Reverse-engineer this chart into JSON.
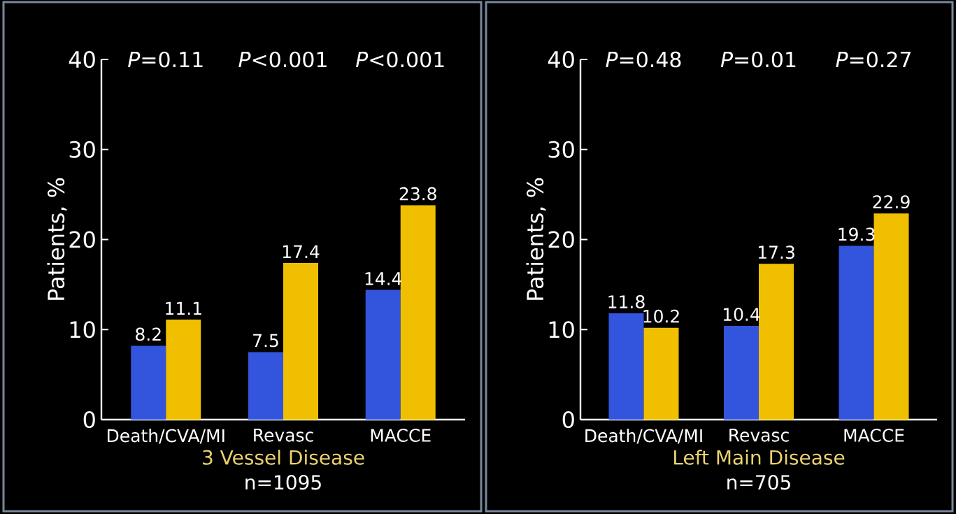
{
  "chart_data": [
    {
      "type": "bar",
      "categories": [
        "Death/CVA/MI",
        "Revasc",
        "MACCE"
      ],
      "ylabel": "Patients, %",
      "xlabel": "3 Vessel Disease",
      "ylim": [
        0,
        40
      ],
      "yticks": [
        0,
        10,
        20,
        30,
        40
      ],
      "data_labels": true,
      "grid": false,
      "series": [
        {
          "color": "#3355dd",
          "values": [
            8.2,
            7.5,
            14.4
          ]
        },
        {
          "color": "#f0c000",
          "values": [
            11.1,
            17.4,
            23.8
          ]
        }
      ],
      "annotations": [
        "*P*=0.11",
        "*P*<0.001",
        "*P*<0.001",
        "n=1095"
      ]
    },
    {
      "type": "bar",
      "categories": [
        "Death/CVA/MI",
        "Revasc",
        "MACCE"
      ],
      "ylabel": "Patients, %",
      "xlabel": "Left Main Disease",
      "ylim": [
        0,
        40
      ],
      "yticks": [
        0,
        10,
        20,
        30,
        40
      ],
      "data_labels": true,
      "grid": false,
      "series": [
        {
          "color": "#3355dd",
          "values": [
            11.8,
            10.4,
            19.3
          ]
        },
        {
          "color": "#f0c000",
          "values": [
            10.2,
            17.3,
            22.9
          ]
        }
      ],
      "annotations": [
        "*P*=0.48",
        "*P*=0.01",
        "*P*=0.27",
        "n=705"
      ]
    }
  ]
}
